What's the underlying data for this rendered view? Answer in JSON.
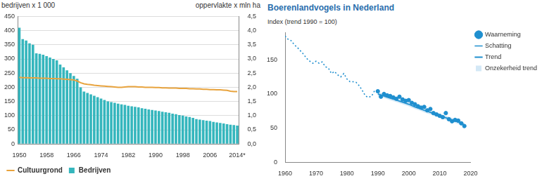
{
  "chart_data": [
    {
      "type": "bar",
      "y_label": "bedrijven x 1 000",
      "y2_label": "oppervlakte x mln ha",
      "categories": [
        "1950",
        null,
        null,
        null,
        null,
        null,
        null,
        null,
        "1958",
        null,
        null,
        null,
        null,
        null,
        null,
        null,
        "1966",
        null,
        null,
        null,
        null,
        null,
        null,
        null,
        "1974",
        null,
        null,
        null,
        null,
        null,
        null,
        null,
        "1982",
        null,
        null,
        null,
        null,
        null,
        null,
        null,
        "1990",
        null,
        null,
        null,
        null,
        null,
        null,
        null,
        "1998",
        null,
        null,
        null,
        null,
        null,
        null,
        null,
        "2006",
        null,
        null,
        null,
        null,
        null,
        null,
        null,
        "2014*"
      ],
      "series": [
        {
          "name": "Bedrijven",
          "type": "bar",
          "color": "#35b6bd",
          "values": [
            410,
            370,
            365,
            355,
            350,
            320,
            318,
            315,
            310,
            305,
            300,
            295,
            280,
            270,
            260,
            250,
            240,
            230,
            200,
            185,
            180,
            175,
            170,
            165,
            160,
            155,
            150,
            148,
            145,
            142,
            140,
            138,
            135,
            133,
            131,
            129,
            126,
            124,
            122,
            120,
            118,
            116,
            114,
            112,
            110,
            107,
            105,
            102,
            100,
            97,
            95,
            92,
            88,
            86,
            84,
            82,
            81,
            78,
            76,
            74,
            72,
            70,
            68,
            67,
            65
          ]
        },
        {
          "name": "Cultuurgrond",
          "type": "line",
          "axis": "y2",
          "color": "#e8a33d",
          "values": [
            2.35,
            2.34,
            2.34,
            2.33,
            2.33,
            2.33,
            2.32,
            2.32,
            2.32,
            2.31,
            2.31,
            2.3,
            2.3,
            2.29,
            2.28,
            2.27,
            2.26,
            2.22,
            2.16,
            2.12,
            2.1,
            2.09,
            2.07,
            2.06,
            2.05,
            2.04,
            2.03,
            2.02,
            2.01,
            2.0,
            2.0,
            2.01,
            2.02,
            2.02,
            2.02,
            2.01,
            2.01,
            2.0,
            2.0,
            2.0,
            1.99,
            1.99,
            1.98,
            1.98,
            1.97,
            1.97,
            1.97,
            1.96,
            1.96,
            1.96,
            1.95,
            1.95,
            1.94,
            1.94,
            1.93,
            1.93,
            1.92,
            1.92,
            1.91,
            1.91,
            1.9,
            1.89,
            1.86,
            1.85,
            1.85
          ]
        }
      ],
      "ylim": [
        0,
        450
      ],
      "yticks": [
        0,
        50,
        100,
        150,
        200,
        250,
        300,
        350,
        400,
        450
      ],
      "y2lim": [
        0,
        4.5
      ],
      "y2ticks": [
        {
          "value": 0,
          "label": "0,0"
        },
        {
          "value": 0.5,
          "label": "0,5"
        },
        {
          "value": 1,
          "label": "1,0"
        },
        {
          "value": 1.5,
          "label": "1,5"
        },
        {
          "value": 2,
          "label": "2,0"
        },
        {
          "value": 2.5,
          "label": "2,5"
        },
        {
          "value": 3,
          "label": "3,0"
        },
        {
          "value": 3.5,
          "label": "3,5"
        },
        {
          "value": 4,
          "label": "4,0"
        },
        {
          "value": 4.5,
          "label": "4,5"
        }
      ],
      "grid": true,
      "legend": "bottom"
    },
    {
      "type": "line",
      "title": "Boerenlandvogels in Nederland",
      "y_label": "Index (trend 1990 = 100)",
      "xlim": [
        1960,
        2020
      ],
      "xticks": [
        1960,
        1970,
        1980,
        1990,
        2000,
        2010,
        2020
      ],
      "ylim": [
        0,
        190
      ],
      "yticks": [
        0,
        50,
        100,
        150
      ],
      "grid": false,
      "legend": "right",
      "series": [
        {
          "name": "Schatting",
          "type": "line",
          "color": "#1f8fcf",
          "line_style": "dotted",
          "marker": "none",
          "x": [
            1960,
            1961,
            1962,
            1963,
            1964,
            1965,
            1966,
            1967,
            1968,
            1969,
            1970,
            1971,
            1972,
            1973,
            1974,
            1975,
            1976,
            1977,
            1978,
            1979,
            1980,
            1981,
            1982,
            1983,
            1984,
            1985,
            1986,
            1987,
            1988,
            1989,
            1990
          ],
          "values": [
            185,
            180,
            178,
            172,
            168,
            163,
            158,
            152,
            148,
            145,
            148,
            145,
            147,
            140,
            138,
            130,
            133,
            128,
            125,
            130,
            122,
            118,
            118,
            117,
            112,
            105,
            97,
            95,
            97,
            105,
            102
          ]
        },
        {
          "name": "Waarneming",
          "type": "scatter",
          "color": "#1f8fcf",
          "marker": "circle",
          "x": [
            1990,
            1991,
            1992,
            1993,
            1994,
            1995,
            1996,
            1997,
            1998,
            1999,
            2000,
            2001,
            2002,
            2003,
            2004,
            2005,
            2006,
            2007,
            2008,
            2009,
            2010,
            2011,
            2012,
            2013,
            2014,
            2015,
            2016,
            2017,
            2018
          ],
          "values": [
            104,
            96,
            100,
            98,
            97,
            95,
            93,
            96,
            92,
            90,
            91,
            87,
            85,
            82,
            80,
            81,
            76,
            78,
            72,
            70,
            68,
            66,
            72,
            63,
            60,
            62,
            61,
            57,
            53
          ]
        },
        {
          "name": "Trend",
          "type": "line",
          "color": "#1f8fcf",
          "line_style": "solid",
          "marker": "none",
          "x": [
            1990,
            1991,
            1992,
            1993,
            1994,
            1995,
            1996,
            1997,
            1998,
            1999,
            2000,
            2001,
            2002,
            2003,
            2004,
            2005,
            2006,
            2007,
            2008,
            2009,
            2010,
            2011,
            2012,
            2013,
            2014,
            2015,
            2016,
            2017,
            2018
          ],
          "values": [
            100,
            98.5,
            97,
            95.5,
            94,
            92.5,
            91,
            89.5,
            88,
            86.5,
            85,
            83,
            81,
            79.5,
            78,
            76,
            74.5,
            73,
            71,
            69.5,
            68,
            66.5,
            65,
            63.5,
            62,
            60.5,
            59,
            57,
            55
          ]
        },
        {
          "name": "Onzekerheid trend",
          "type": "area",
          "color": "#d3e8f6",
          "x": [
            1990,
            1991,
            1992,
            1993,
            1994,
            1995,
            1996,
            1997,
            1998,
            1999,
            2000,
            2001,
            2002,
            2003,
            2004,
            2005,
            2006,
            2007,
            2008,
            2009,
            2010,
            2011,
            2012,
            2013,
            2014,
            2015,
            2016,
            2017,
            2018
          ],
          "lower": [
            97,
            95.5,
            94,
            92.5,
            91,
            89.5,
            88,
            86.5,
            85,
            83.5,
            82,
            80,
            78,
            76.5,
            75,
            73,
            71.5,
            70,
            68,
            66.5,
            65,
            63.5,
            62,
            60.5,
            59,
            57.5,
            56,
            54,
            52
          ],
          "upper": [
            103,
            101.5,
            100,
            98.5,
            97,
            95.5,
            94,
            92.5,
            91,
            89.5,
            88,
            86,
            84,
            82.5,
            81,
            79,
            77.5,
            76,
            74,
            72.5,
            71,
            69.5,
            68,
            66.5,
            65,
            63.5,
            62,
            60,
            58
          ]
        }
      ]
    }
  ]
}
